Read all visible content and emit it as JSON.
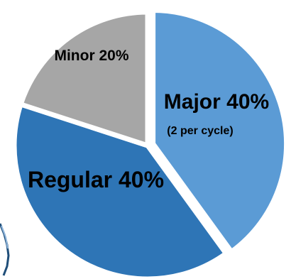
{
  "chart_data": {
    "type": "pie",
    "title": "",
    "slices": [
      {
        "label": "Major 40%",
        "sublabel": "(2 per cycle)",
        "value": 40,
        "color": "#5b9bd5"
      },
      {
        "label": "Regular 40%",
        "sublabel": "",
        "value": 40,
        "color": "#2e75b6"
      },
      {
        "label": "Minor 20%",
        "sublabel": "",
        "value": 20,
        "color": "#a6a6a6"
      }
    ],
    "legend": "none",
    "start_angle_deg": 0,
    "direction": "clockwise",
    "exploded": "Major"
  }
}
